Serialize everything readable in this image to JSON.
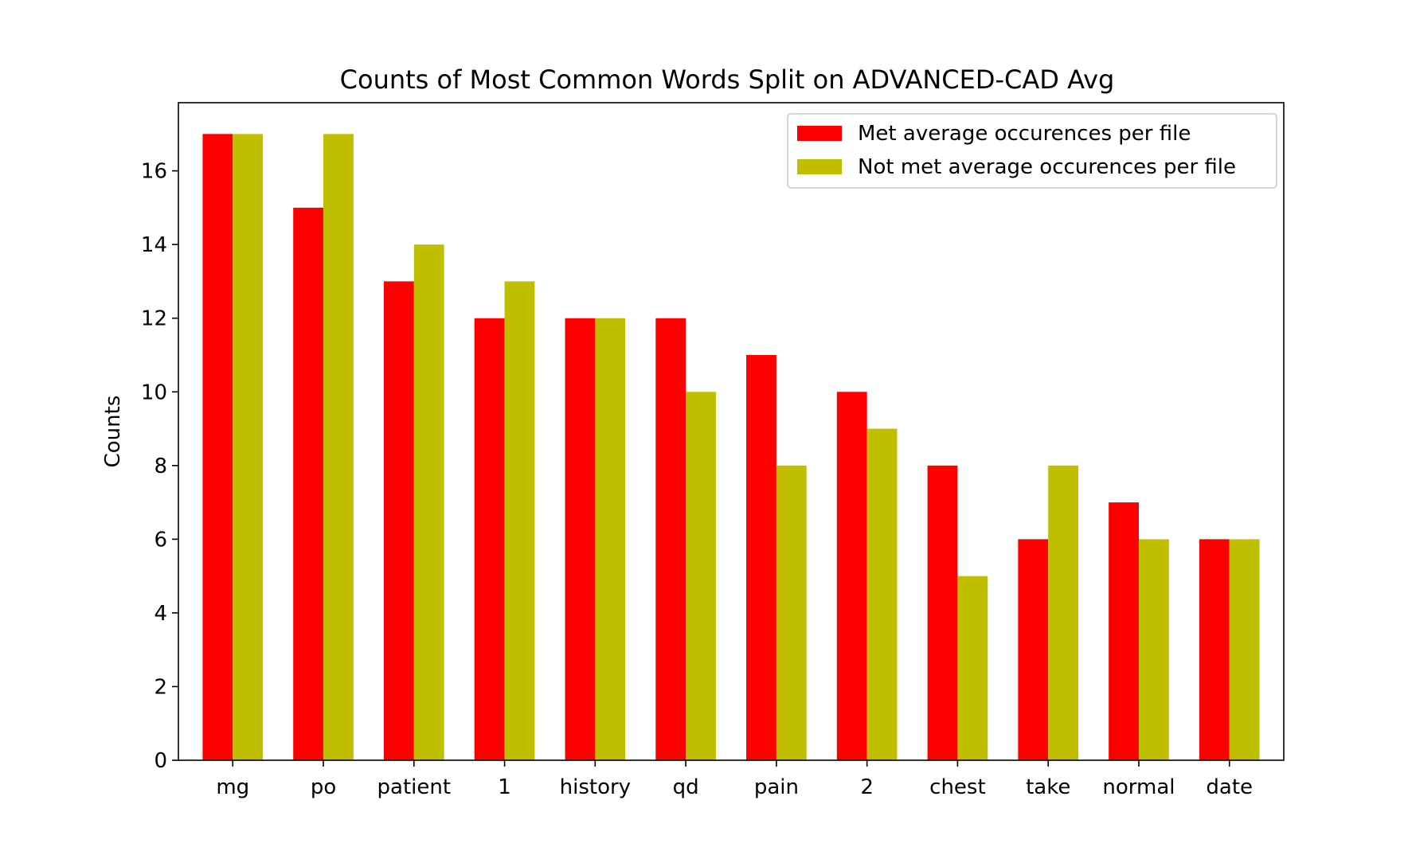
{
  "chart_data": {
    "type": "bar",
    "title": "Counts of Most Common Words Split on ADVANCED-CAD Avg",
    "xlabel": "",
    "ylabel": "Counts",
    "categories": [
      "mg",
      "po",
      "patient",
      "1",
      "history",
      "qd",
      "pain",
      "2",
      "chest",
      "take",
      "normal",
      "date"
    ],
    "series": [
      {
        "name": "Met average occurences per file",
        "color": "#ff0000",
        "values": [
          17,
          15,
          13,
          12,
          12,
          12,
          11,
          10,
          8,
          6,
          7,
          6
        ]
      },
      {
        "name": "Not met average occurences per file",
        "color": "#bfbf00",
        "values": [
          17,
          17,
          14,
          13,
          12,
          10,
          8,
          9,
          5,
          8,
          6,
          6
        ]
      }
    ],
    "ylim": [
      0,
      17.85
    ],
    "yticks": [
      0,
      2,
      4,
      6,
      8,
      10,
      12,
      14,
      16
    ],
    "grid": false,
    "legend_position": "upper right"
  }
}
